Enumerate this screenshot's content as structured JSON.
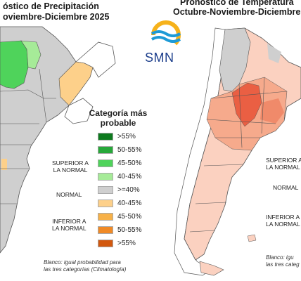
{
  "left_panel": {
    "title_line1": "óstico de Precipitación",
    "title_line2": "oviembre-Diciembre 2025"
  },
  "right_panel": {
    "title_line1": "Pronóstico de Temperatura",
    "title_line2": "Octubre-Noviembre-Diciembre"
  },
  "logo": {
    "text": "SMN",
    "colors": [
      "#f6b21b",
      "#1d9ad6",
      "#1d3f8c"
    ]
  },
  "legend": {
    "title_line1": "Categoría más",
    "title_line2": "probable",
    "items": [
      {
        "label": ">55%",
        "color": "#0d7a1e"
      },
      {
        "label": "50-55%",
        "color": "#27a83a"
      },
      {
        "label": "45-50%",
        "color": "#4fd35b"
      },
      {
        "label": "40-45%",
        "color": "#a6eb98"
      },
      {
        "label": ">=40%",
        "color": "#cfcfcf"
      },
      {
        "label": "40-45%",
        "color": "#fdd08a"
      },
      {
        "label": "45-50%",
        "color": "#f7b148"
      },
      {
        "label": "50-55%",
        "color": "#f08a26"
      },
      {
        "label": ">55%",
        "color": "#d2580e"
      }
    ]
  },
  "left_categories": {
    "superior_line1": "SUPERIOR A",
    "superior_line2": "LA NORMAL",
    "normal": "NORMAL",
    "inferior_line1": "INFERIOR A",
    "inferior_line2": "LA NORMAL"
  },
  "right_categories": {
    "superior_line1": "SUPERIOR A",
    "superior_line2": "LA NORMAL",
    "normal": "NORMAL",
    "inferior_line1": "INFERIOR A",
    "inferior_line2": "LA NORMAL"
  },
  "left_footnote": {
    "line1": "Blanco: igual probabilidad para",
    "line2": "las tres categorías (Climatología)"
  },
  "right_footnote": {
    "line1": "Blanco: igu",
    "line2": "las tres categ"
  },
  "map_colors": {
    "gray": "#cfcfcf",
    "green": "#4fd35b",
    "light_green": "#a6eb98",
    "light_orange": "#fdd08a",
    "orange": "#f7b148",
    "salmon_light": "#fbd1c0",
    "salmon": "#f6aa8c",
    "salmon_dark": "#f08a6a",
    "red": "#ea5f43",
    "border": "#555555",
    "water": "#ffffff"
  }
}
